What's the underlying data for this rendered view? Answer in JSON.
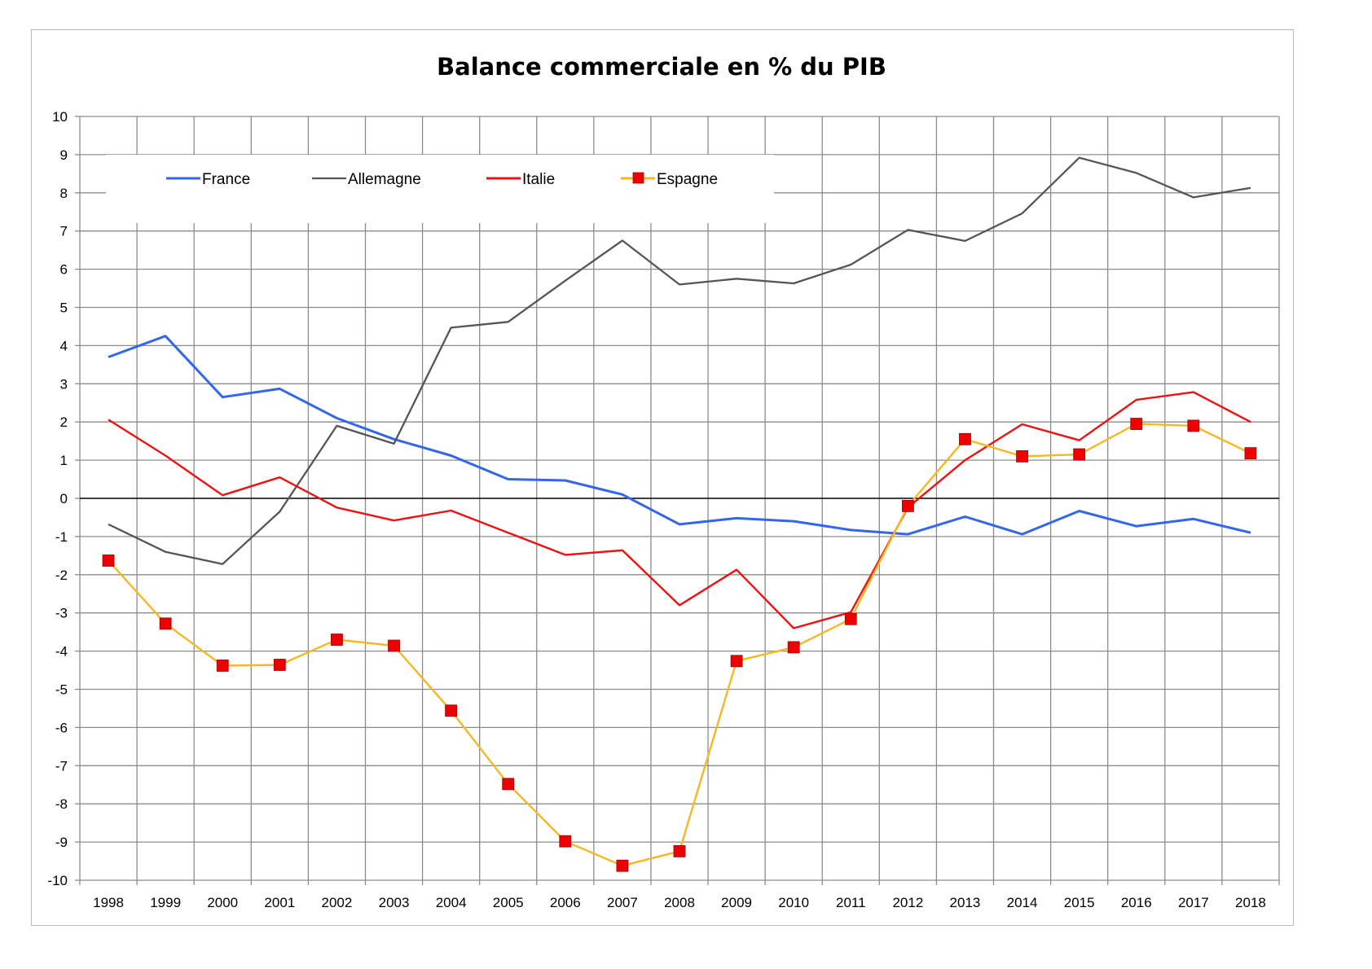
{
  "chart_data": {
    "type": "line",
    "title": "Balance commerciale en % du PIB",
    "xlabel": "",
    "ylabel": "",
    "ylim": [
      -10,
      10
    ],
    "y_ticks": [
      "10",
      "9",
      "8",
      "7",
      "6",
      "5",
      "4",
      "3",
      "2",
      "1",
      "0",
      "-1",
      "-2",
      "-3",
      "-4",
      "-5",
      "-6",
      "-7",
      "-8",
      "-9",
      "-10"
    ],
    "categories": [
      "1998",
      "1999",
      "2000",
      "2001",
      "2002",
      "2003",
      "2004",
      "2005",
      "2006",
      "2007",
      "2008",
      "2009",
      "2010",
      "2011",
      "2012",
      "2013",
      "2014",
      "2015",
      "2016",
      "2017",
      "2018"
    ],
    "grid": true,
    "legend_position": "top-left",
    "series": [
      {
        "name": "France",
        "color": "#3366ee",
        "marker": "none",
        "values": [
          3.7,
          4.25,
          2.65,
          2.87,
          2.1,
          1.55,
          1.12,
          0.5,
          0.47,
          0.1,
          -0.68,
          -0.52,
          -0.6,
          -0.83,
          -0.94,
          -0.48,
          -0.94,
          -0.33,
          -0.73,
          -0.54,
          -0.9
        ]
      },
      {
        "name": "Allemagne",
        "color": "#555555",
        "marker": "none",
        "values": [
          -0.68,
          -1.4,
          -1.72,
          -0.35,
          1.9,
          1.43,
          4.47,
          4.62,
          5.7,
          6.75,
          5.6,
          5.75,
          5.63,
          6.12,
          7.03,
          6.74,
          7.46,
          8.92,
          8.52,
          7.88,
          8.13
        ]
      },
      {
        "name": "Italie",
        "color": "#ee1111",
        "marker": "none",
        "values": [
          2.06,
          1.12,
          0.08,
          0.55,
          -0.24,
          -0.58,
          -0.32,
          -0.9,
          -1.48,
          -1.36,
          -2.8,
          -1.87,
          -3.4,
          -2.98,
          -0.24,
          1.0,
          1.94,
          1.52,
          2.58,
          2.78,
          2.0
        ]
      },
      {
        "name": "Espagne",
        "color": "#f5b823",
        "marker": "square",
        "marker_color": "#ee0000",
        "values": [
          -1.63,
          -3.28,
          -4.38,
          -4.36,
          -3.7,
          -3.86,
          -5.56,
          -7.48,
          -8.98,
          -9.62,
          -9.24,
          -4.26,
          -3.9,
          -3.16,
          -0.2,
          1.55,
          1.1,
          1.15,
          1.95,
          1.9,
          1.18
        ]
      }
    ]
  }
}
